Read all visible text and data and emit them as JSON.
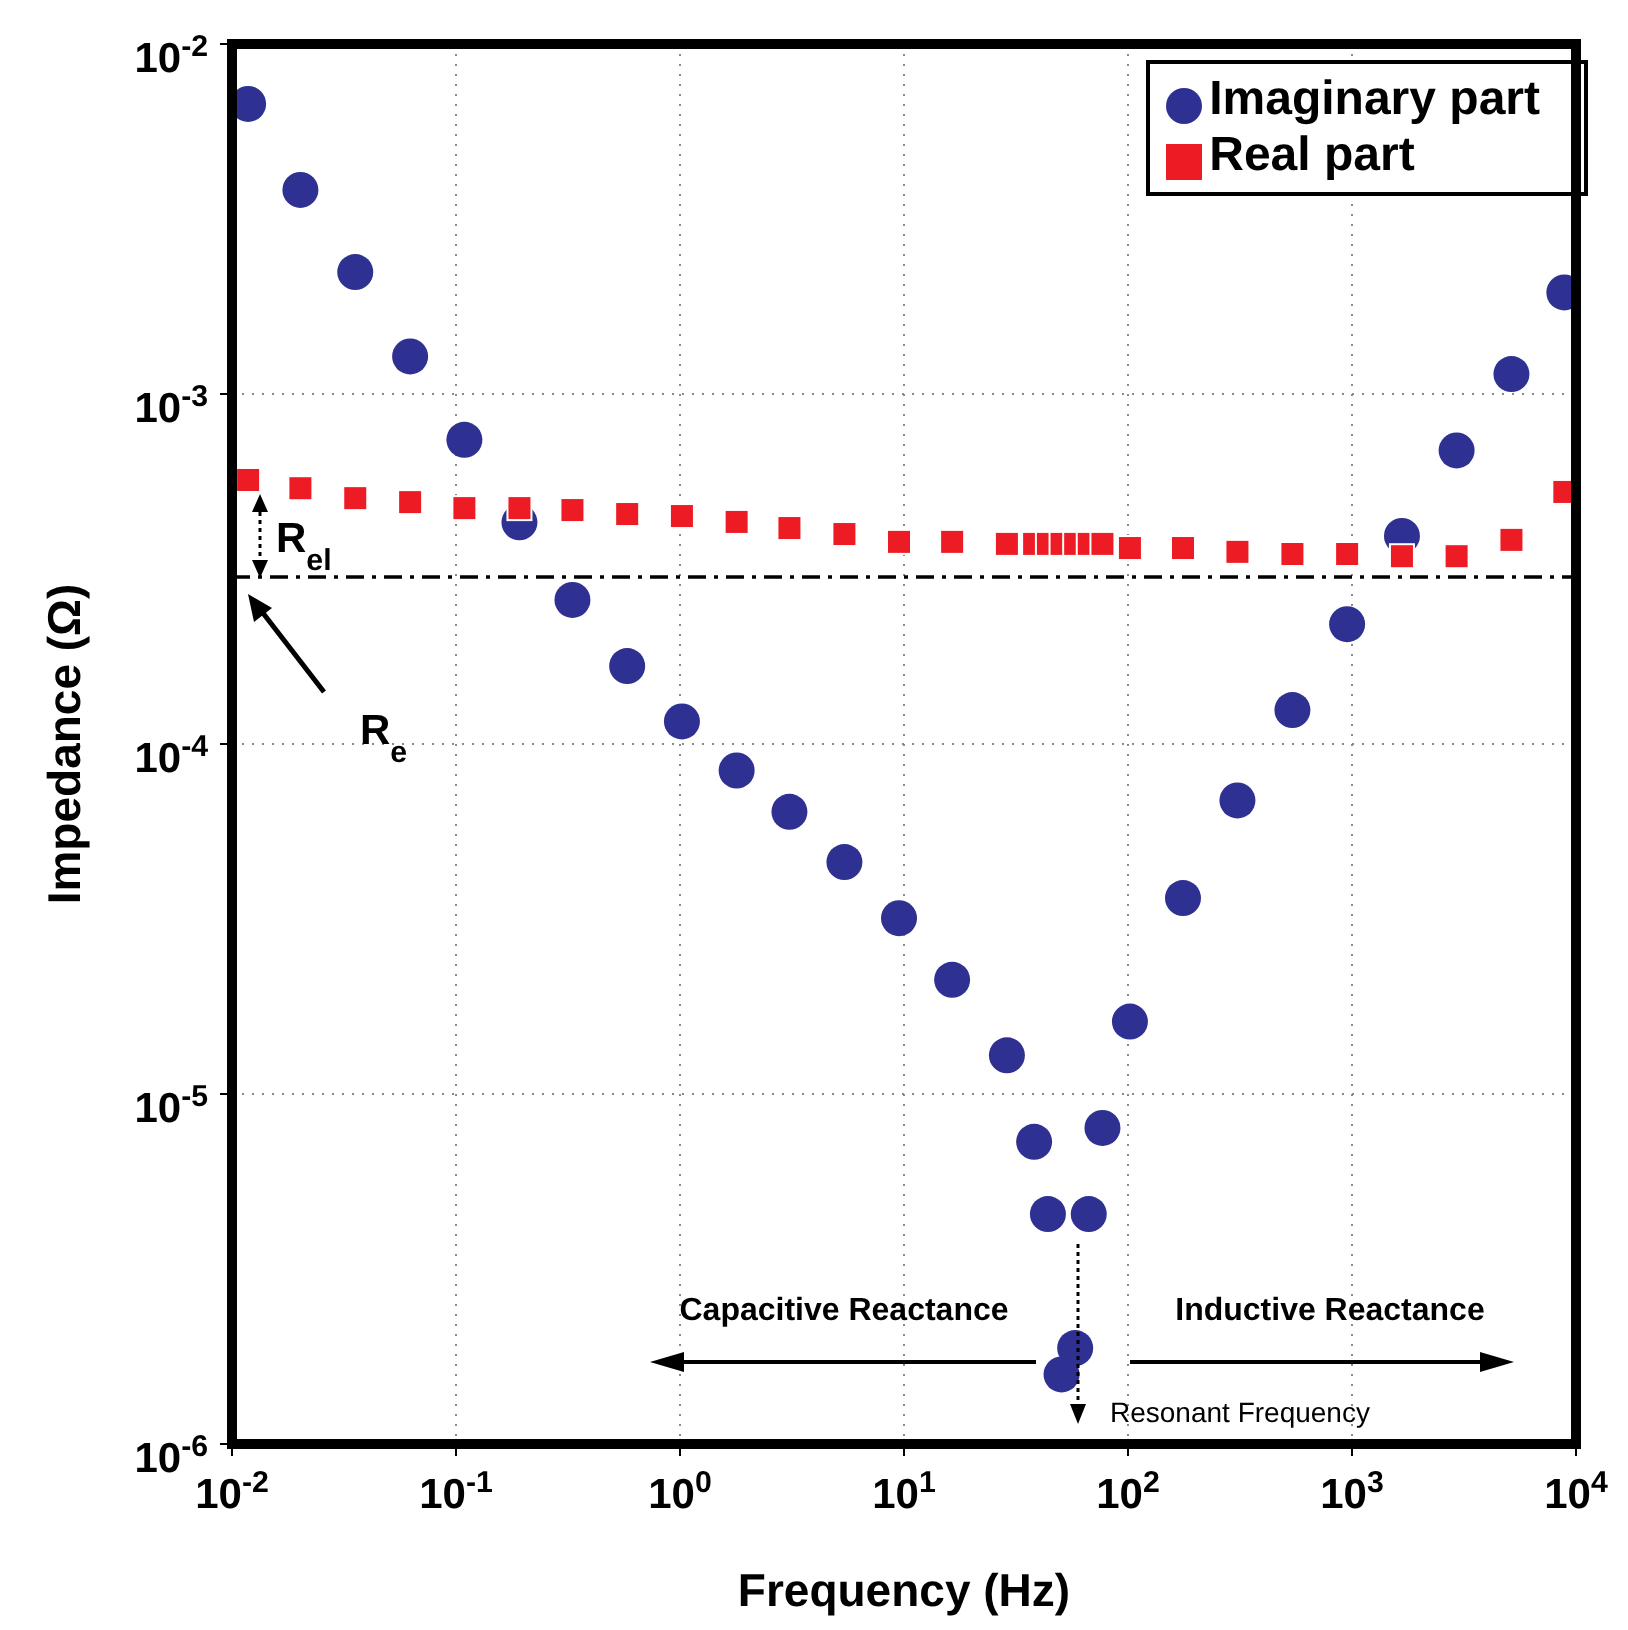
{
  "chart_data": {
    "type": "scatter",
    "xlabel": "Frequency (Hz)",
    "ylabel": "Impedance (Ω)",
    "log": "xy",
    "grid": true,
    "legend": "top right",
    "xlim": [
      0.01,
      10000
    ],
    "ylim": [
      1e-06,
      0.01
    ],
    "xticks": [
      {
        "value": 0.01,
        "label": "10$^{-2}$"
      },
      {
        "value": 0.1,
        "label": "10$^{-1}$"
      },
      {
        "value": 1,
        "label": "10$^{0}$"
      },
      {
        "value": 10,
        "label": "10$^{1}$"
      },
      {
        "value": 100,
        "label": "10$^{2}$"
      },
      {
        "value": 1000,
        "label": "10$^{3}$"
      },
      {
        "value": 10000,
        "label": "10$^{4}$"
      }
    ],
    "yticks": [
      {
        "value": 1e-06,
        "label": "10$^{-6}$"
      },
      {
        "value": 1e-05,
        "label": "10$^{-5}$"
      },
      {
        "value": 0.0001,
        "label": "10$^{-4}$"
      },
      {
        "value": 0.001,
        "label": "10$^{-3}$"
      },
      {
        "value": 0.01,
        "label": "10$^{-2}$"
      }
    ],
    "x": [
      0.0118,
      0.0202,
      0.0355,
      0.0624,
      0.109,
      0.192,
      0.331,
      0.581,
      1.02,
      1.79,
      3.08,
      5.42,
      9.5,
      16.4,
      28.8,
      38.1,
      43.9,
      50.5,
      58.1,
      66.8,
      76.9,
      102,
      176,
      308,
      542,
      951,
      1671,
      2931,
      5150,
      8870
    ],
    "series": [
      {
        "name": "Imaginary part",
        "color": "#2e3192",
        "marker": "circle",
        "values": [
          0.00674,
          0.00383,
          0.00223,
          0.00128,
          0.00074,
          0.00043,
          0.000258,
          0.000167,
          0.000116,
          8.4e-05,
          6.4e-05,
          4.6e-05,
          3.18e-05,
          2.12e-05,
          1.29e-05,
          7.3e-06,
          4.54e-06,
          1.58e-06,
          1.88e-06,
          4.54e-06,
          8e-06,
          1.61e-05,
          3.63e-05,
          6.9e-05,
          0.000125,
          0.00022,
          0.000393,
          0.00069,
          0.00114,
          0.00195
        ]
      },
      {
        "name": "Real part",
        "color": "#ed1c24",
        "marker": "square",
        "values": [
          0.000568,
          0.000538,
          0.000504,
          0.000491,
          0.000472,
          0.000472,
          0.000466,
          0.000454,
          0.000448,
          0.000431,
          0.000414,
          0.000398,
          0.000378,
          0.000378,
          0.000373,
          0.000373,
          0.000373,
          0.000373,
          0.000373,
          0.000373,
          0.000373,
          0.000363,
          0.000363,
          0.000354,
          0.000349,
          0.000349,
          0.000344,
          0.000344,
          0.000383,
          0.000525
        ]
      }
    ],
    "ref_lines": [
      {
        "axis": "y",
        "value": 0.0003,
        "line_style": "dashed",
        "color": "#000000"
      }
    ],
    "annotations": [
      "R$_{el}$",
      "R$_{e}$",
      "Capacitive Reactance",
      "Inductive Reactance",
      "Resonant Frequency"
    ]
  }
}
